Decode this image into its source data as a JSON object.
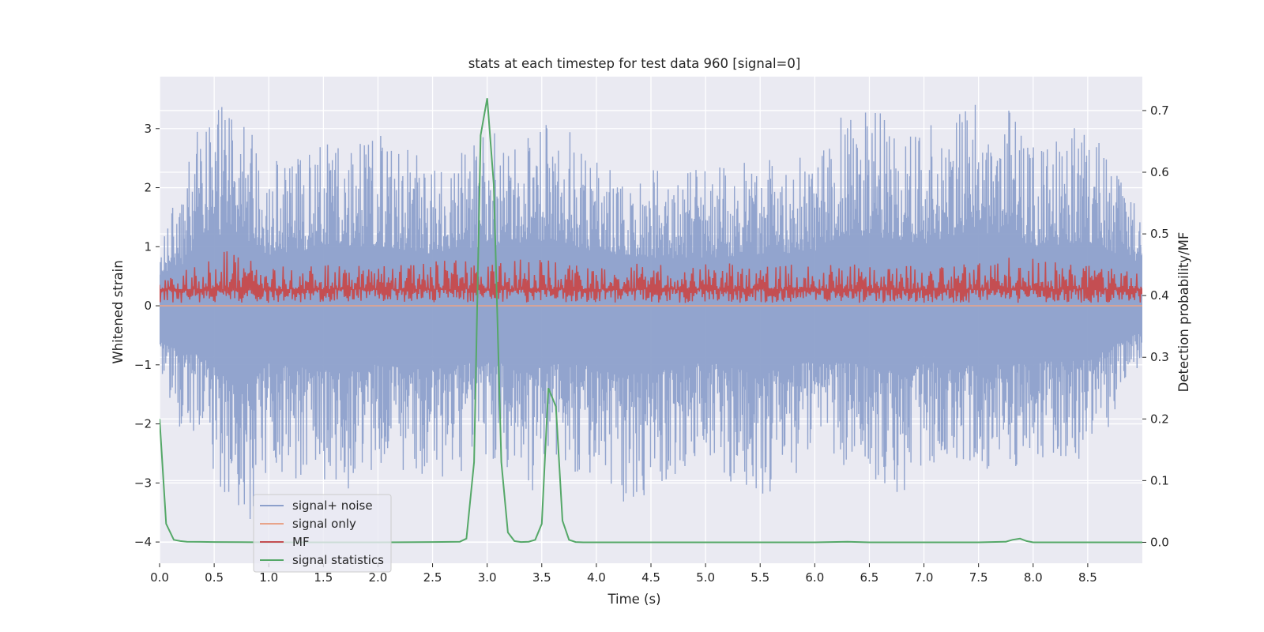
{
  "chart_data": {
    "type": "line",
    "title": "stats at each timestep for test data 960 [signal=0]",
    "xlabel": "Time (s)",
    "ylabel": "Whitened strain",
    "ylabel_right": "Detection probability/MF",
    "xlim": [
      0.0,
      9.0
    ],
    "ylim": [
      -4.36,
      3.88
    ],
    "ylim_right": [
      -0.034,
      0.755
    ],
    "x_ticks": [
      0.0,
      0.5,
      1.0,
      1.5,
      2.0,
      2.5,
      3.0,
      3.5,
      4.0,
      4.5,
      5.0,
      5.5,
      6.0,
      6.5,
      7.0,
      7.5,
      8.0,
      8.5
    ],
    "x_tick_labels": [
      "0.0",
      "0.5",
      "1.0",
      "1.5",
      "2.0",
      "2.5",
      "3.0",
      "3.5",
      "4.0",
      "4.5",
      "5.0",
      "5.5",
      "6.0",
      "6.5",
      "7.0",
      "7.5",
      "8.0",
      "8.5"
    ],
    "y_ticks": [
      3,
      2,
      1,
      0,
      -1,
      -2,
      -3,
      -4
    ],
    "y_tick_labels": [
      "3",
      "2",
      "1",
      "0",
      "−1",
      "−2",
      "−3",
      "−4"
    ],
    "y_right_ticks": [
      0.7,
      0.6,
      0.5,
      0.4,
      0.3,
      0.2,
      0.1,
      0.0
    ],
    "y_right_tick_labels": [
      "0.7",
      "0.6",
      "0.5",
      "0.4",
      "0.3",
      "0.2",
      "0.1",
      "0.0"
    ],
    "grid": true,
    "legend_position": "lower-left",
    "series": [
      {
        "name": "signal+ noise",
        "axis": "left",
        "color": "#8da0cb",
        "envelope_upper": [
          [
            0.0,
            1.5
          ],
          [
            0.2,
            1.9
          ],
          [
            0.4,
            3.45
          ],
          [
            0.75,
            3.35
          ],
          [
            1.0,
            2.4
          ],
          [
            1.5,
            2.8
          ],
          [
            2.0,
            2.9
          ],
          [
            2.5,
            2.5
          ],
          [
            3.0,
            2.9
          ],
          [
            3.6,
            3.2
          ],
          [
            4.0,
            2.6
          ],
          [
            4.5,
            2.3
          ],
          [
            5.0,
            2.3
          ],
          [
            5.5,
            2.5
          ],
          [
            6.0,
            2.6
          ],
          [
            6.2,
            3.3
          ],
          [
            6.5,
            3.4
          ],
          [
            7.0,
            3.0
          ],
          [
            7.5,
            3.5
          ],
          [
            7.75,
            3.5
          ],
          [
            8.0,
            2.8
          ],
          [
            8.5,
            3.1
          ],
          [
            9.0,
            2.0
          ]
        ],
        "envelope_lower": [
          [
            0.0,
            -1.5
          ],
          [
            0.2,
            -2.2
          ],
          [
            0.4,
            -2.4
          ],
          [
            0.75,
            -4.05
          ],
          [
            1.0,
            -2.8
          ],
          [
            1.5,
            -3.1
          ],
          [
            1.66,
            -3.2
          ],
          [
            2.0,
            -2.7
          ],
          [
            2.5,
            -3.1
          ],
          [
            3.0,
            -2.6
          ],
          [
            3.4,
            -3.2
          ],
          [
            3.5,
            -2.8
          ],
          [
            4.0,
            -2.9
          ],
          [
            4.2,
            -3.4
          ],
          [
            4.5,
            -3.2
          ],
          [
            5.0,
            -2.7
          ],
          [
            5.5,
            -3.3
          ],
          [
            6.0,
            -2.6
          ],
          [
            6.5,
            -2.9
          ],
          [
            6.8,
            -3.3
          ],
          [
            7.0,
            -2.7
          ],
          [
            7.5,
            -2.9
          ],
          [
            8.0,
            -2.7
          ],
          [
            8.5,
            -2.6
          ],
          [
            9.0,
            -1.2
          ]
        ]
      },
      {
        "name": "signal only",
        "axis": "left",
        "color": "#e8a48a",
        "x": [
          0.0,
          9.0
        ],
        "y": [
          0.0,
          0.0
        ]
      },
      {
        "name": "MF",
        "axis": "left",
        "color": "#c44e52",
        "envelope_upper": [
          [
            0.0,
            0.4
          ],
          [
            0.5,
            1.0
          ],
          [
            1.0,
            0.7
          ],
          [
            2.0,
            0.7
          ],
          [
            3.0,
            0.85
          ],
          [
            4.0,
            0.7
          ],
          [
            5.0,
            0.75
          ],
          [
            6.0,
            0.7
          ],
          [
            7.0,
            0.7
          ],
          [
            8.0,
            0.85
          ],
          [
            9.0,
            0.6
          ]
        ],
        "envelope_lower": [
          [
            0.0,
            0.05
          ],
          [
            9.0,
            0.05
          ]
        ]
      },
      {
        "name": "signal statistics",
        "axis": "right",
        "color": "#55a868",
        "x": [
          0.0,
          0.06,
          0.13,
          0.19,
          0.25,
          0.5,
          0.75,
          1.0,
          1.5,
          2.0,
          2.5,
          2.75,
          2.81,
          2.88,
          2.94,
          3.0,
          3.06,
          3.13,
          3.19,
          3.25,
          3.31,
          3.38,
          3.44,
          3.5,
          3.56,
          3.63,
          3.69,
          3.75,
          3.81,
          3.88,
          3.94,
          4.0,
          5.0,
          6.0,
          6.3,
          6.5,
          7.0,
          7.5,
          7.75,
          7.81,
          7.88,
          7.94,
          8.0,
          9.0
        ],
        "y": [
          0.2,
          0.03,
          0.004,
          0.002,
          0.001,
          0.0005,
          0.0002,
          0.0,
          0.0,
          0.0,
          0.0005,
          0.001,
          0.006,
          0.13,
          0.66,
          0.72,
          0.58,
          0.13,
          0.016,
          0.002,
          0.0005,
          0.001,
          0.004,
          0.03,
          0.25,
          0.22,
          0.035,
          0.004,
          0.0005,
          0.0,
          0.0,
          0.0,
          0.0,
          0.0,
          0.001,
          0.0,
          0.0,
          0.0,
          0.001,
          0.004,
          0.006,
          0.002,
          0.0,
          0.0
        ]
      }
    ]
  }
}
